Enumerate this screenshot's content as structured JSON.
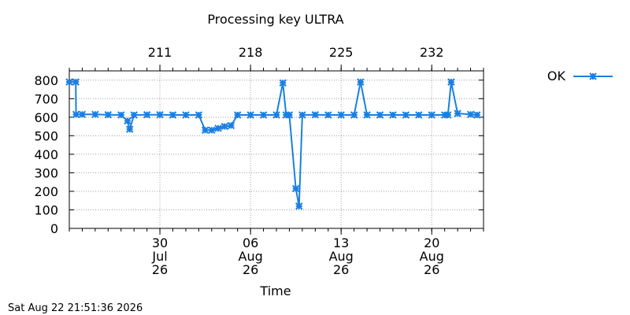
{
  "chart_data": {
    "type": "line",
    "title": "Processing key ULTRA",
    "xlabel": "Time",
    "ylabel": "",
    "ylim": [
      0,
      850
    ],
    "yticks": [
      0,
      100,
      200,
      300,
      400,
      500,
      600,
      700,
      800
    ],
    "xlim_days": [
      "2026-07-23",
      "2026-08-24"
    ],
    "x_bottom_ticks": [
      {
        "date": "2026-07-30",
        "line1": "30",
        "line2": "Jul",
        "line3": "26"
      },
      {
        "date": "2026-08-06",
        "line1": "06",
        "line2": "Aug",
        "line3": "26"
      },
      {
        "date": "2026-08-13",
        "line1": "13",
        "line2": "Aug",
        "line3": "26"
      },
      {
        "date": "2026-08-20",
        "line1": "20",
        "line2": "Aug",
        "line3": "26"
      }
    ],
    "x_top_ticks": [
      {
        "date": "2026-07-30",
        "label": "211"
      },
      {
        "date": "2026-08-06",
        "label": "218"
      },
      {
        "date": "2026-08-13",
        "label": "225"
      },
      {
        "date": "2026-08-20",
        "label": "232"
      }
    ],
    "grid": true,
    "legend_position": "top-right",
    "series": [
      {
        "name": "OK",
        "color": "#1a7fe0",
        "marker": "x-star",
        "x": [
          "2026-07-23 00:00",
          "2026-07-23 12:00",
          "2026-07-23 12:30",
          "2026-07-24 00:00",
          "2026-07-25 00:00",
          "2026-07-26 00:00",
          "2026-07-27 00:00",
          "2026-07-27 12:00",
          "2026-07-27 16:00",
          "2026-07-28 00:00",
          "2026-07-29 00:00",
          "2026-07-30 00:00",
          "2026-07-31 00:00",
          "2026-08-01 00:00",
          "2026-08-02 00:00",
          "2026-08-02 12:00",
          "2026-08-03 00:00",
          "2026-08-03 12:00",
          "2026-08-04 00:00",
          "2026-08-04 12:00",
          "2026-08-05 00:00",
          "2026-08-06 00:00",
          "2026-08-07 00:00",
          "2026-08-08 00:00",
          "2026-08-08 12:00",
          "2026-08-08 18:00",
          "2026-08-09 00:00",
          "2026-08-09 12:00",
          "2026-08-09 18:00",
          "2026-08-10 00:00",
          "2026-08-11 00:00",
          "2026-08-12 00:00",
          "2026-08-13 00:00",
          "2026-08-14 00:00",
          "2026-08-14 12:00",
          "2026-08-15 00:00",
          "2026-08-16 00:00",
          "2026-08-17 00:00",
          "2026-08-18 00:00",
          "2026-08-19 00:00",
          "2026-08-20 00:00",
          "2026-08-21 00:00",
          "2026-08-21 06:00",
          "2026-08-21 12:00",
          "2026-08-22 00:00",
          "2026-08-23 00:00",
          "2026-08-23 12:00"
        ],
        "values": [
          790,
          790,
          615,
          615,
          615,
          613,
          612,
          580,
          535,
          612,
          613,
          613,
          612,
          612,
          612,
          530,
          530,
          540,
          550,
          555,
          612,
          612,
          612,
          612,
          785,
          612,
          612,
          215,
          120,
          612,
          613,
          612,
          612,
          612,
          790,
          612,
          612,
          612,
          612,
          612,
          612,
          612,
          612,
          790,
          620,
          615,
          612
        ]
      }
    ]
  },
  "footer_timestamp": "Sat Aug 22 21:51:36 2026"
}
